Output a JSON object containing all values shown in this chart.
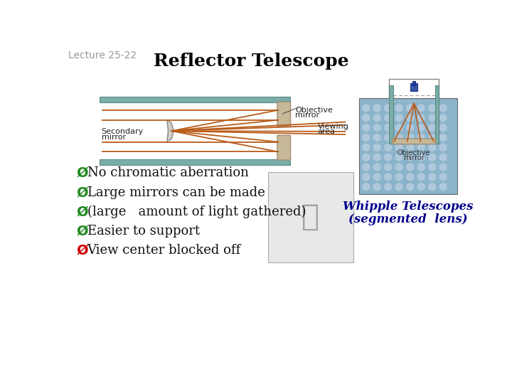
{
  "title": "Reflector Telescope",
  "lecture_label": "Lecture 25-22",
  "background_color": "#ffffff",
  "title_color": "#000000",
  "title_fontsize": 18,
  "lecture_label_color": "#999999",
  "lecture_label_fontsize": 10,
  "bullet_items": [
    {
      "text": "No chromatic aberration",
      "symbol_color": "#228B22"
    },
    {
      "text": "Large mirrors can be made",
      "symbol_color": "#228B22"
    },
    {
      "text": "(large   amount of light gathered)",
      "symbol_color": "#228B22"
    },
    {
      "text": "Easier to support",
      "symbol_color": "#228B22"
    },
    {
      "text": "View center blocked off",
      "symbol_color": "#CC0000"
    }
  ],
  "whipple_text": "Whipple Telescopes",
  "segmented_text": "(segmented  lens)",
  "caption_color": "#00008B",
  "caption_fontsize": 12,
  "ray_color": "#b85c1a",
  "teal_color": "#7aada8",
  "teal_edge": "#5a8a85",
  "mirror_face": "#c8b89a",
  "mirror_edge": "#a09070"
}
